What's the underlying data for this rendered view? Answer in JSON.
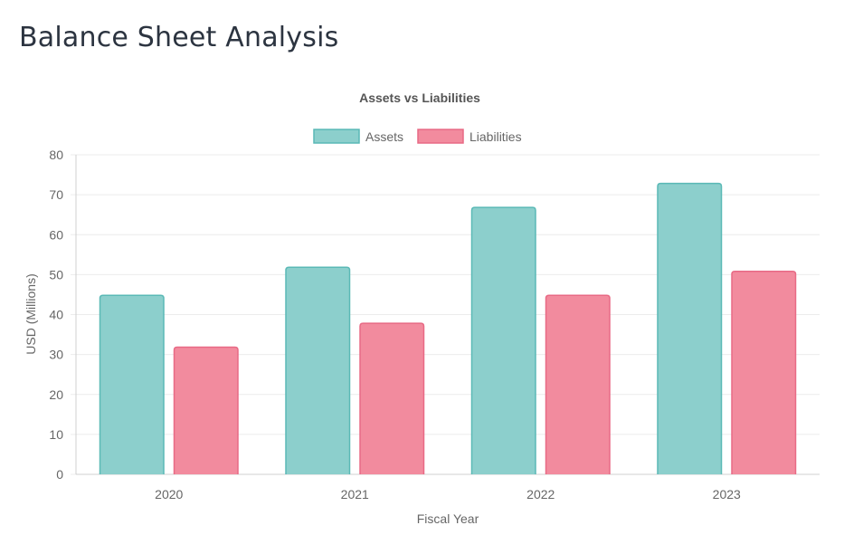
{
  "page": {
    "title": "Balance Sheet Analysis"
  },
  "chart_data": {
    "type": "bar",
    "title": "Assets vs Liabilities",
    "xlabel": "Fiscal Year",
    "ylabel": "USD (Millions)",
    "categories": [
      "2020",
      "2021",
      "2022",
      "2023"
    ],
    "series": [
      {
        "name": "Assets",
        "values": [
          45,
          52,
          67,
          73
        ],
        "fill": "#8ccfcc",
        "stroke": "#5ab9b6"
      },
      {
        "name": "Liabilities",
        "values": [
          32,
          38,
          45,
          51
        ],
        "fill": "#f28b9e",
        "stroke": "#e86a85"
      }
    ],
    "ylim": [
      0,
      80
    ],
    "yticks": [
      0,
      10,
      20,
      30,
      40,
      50,
      60,
      70,
      80
    ],
    "grid": true,
    "legend": "top-center"
  }
}
